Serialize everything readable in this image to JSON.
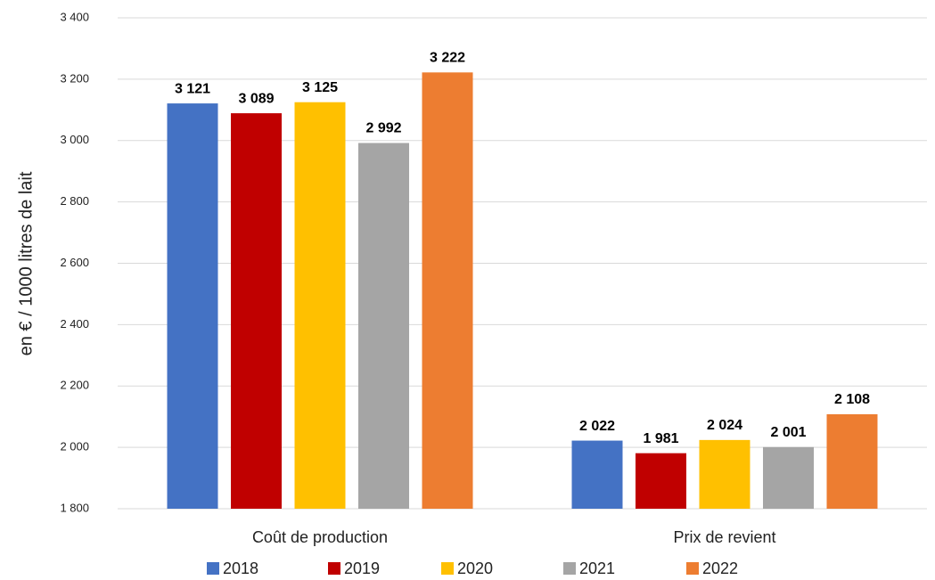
{
  "chart_data": {
    "type": "bar",
    "y_label": "en € / 1000 litres de lait",
    "categories": [
      "Coût de production",
      "Prix de revient"
    ],
    "series": [
      {
        "name": "2018",
        "color": "#4472c4",
        "values": [
          3121,
          2022
        ],
        "value_labels": [
          "3 121",
          "2 022"
        ]
      },
      {
        "name": "2019",
        "color": "#c00000",
        "values": [
          3089,
          1981
        ],
        "value_labels": [
          "3 089",
          "1 981"
        ]
      },
      {
        "name": "2020",
        "color": "#ffc000",
        "values": [
          3125,
          2024
        ],
        "value_labels": [
          "3 125",
          "2 024"
        ]
      },
      {
        "name": "2021",
        "color": "#a5a5a5",
        "values": [
          2992,
          2001
        ],
        "value_labels": [
          "2 992",
          "2 001"
        ]
      },
      {
        "name": "2022",
        "color": "#ed7d31",
        "values": [
          3222,
          2108
        ],
        "value_labels": [
          "3 222",
          "2 108"
        ]
      }
    ],
    "ylim": [
      1800,
      3400
    ],
    "yticks": [
      {
        "value": 1800,
        "label": "1 800"
      },
      {
        "value": 2000,
        "label": "2 000"
      },
      {
        "value": 2200,
        "label": "2 200"
      },
      {
        "value": 2400,
        "label": "2 400"
      },
      {
        "value": 2600,
        "label": "2 600"
      },
      {
        "value": 2800,
        "label": "2 800"
      },
      {
        "value": 3000,
        "label": "3 000"
      },
      {
        "value": 3200,
        "label": "3 200"
      },
      {
        "value": 3400,
        "label": "3 400"
      }
    ],
    "grid": true,
    "legend": "bottom"
  }
}
